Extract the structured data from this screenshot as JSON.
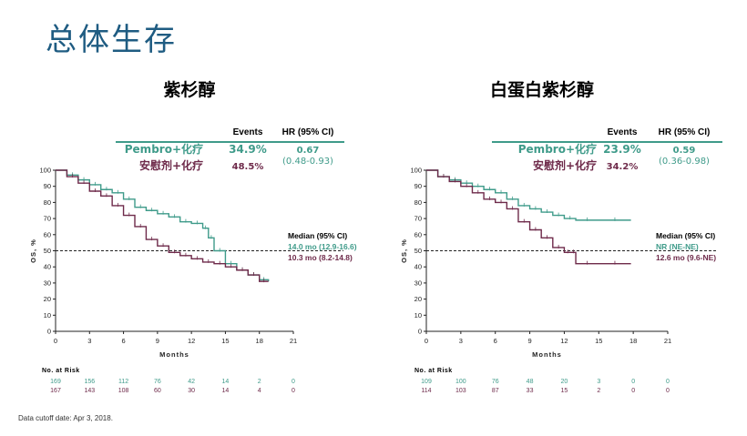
{
  "slide_title": "总体生存",
  "footnote": "Data cutoff date: Apr 3, 2018.",
  "colors": {
    "pembro": "#3f9b8a",
    "placebo": "#6e2a4a",
    "title": "#1f5c82"
  },
  "chart_data": [
    {
      "type": "line",
      "title": "紫杉醇",
      "xlabel": "Months",
      "ylabel": "OS, %",
      "xlim": [
        0,
        21
      ],
      "ylim": [
        0,
        100
      ],
      "xticks": [
        "0",
        "3",
        "6",
        "9",
        "12",
        "15",
        "18",
        "21"
      ],
      "yticks": [
        "0",
        "10",
        "20",
        "30",
        "40",
        "50",
        "60",
        "70",
        "80",
        "90",
        "100"
      ],
      "median_line": 50,
      "table_headers": {
        "events": "Events",
        "hr": "HR (95% CI)",
        "median": "Median (95% CI)"
      },
      "series": [
        {
          "name": "Pembro+化疗",
          "events": "34.9%",
          "hr": "0.67",
          "hr_ci": "(0.48-0.93)",
          "median": "14.0 mo (12.9-16.6)",
          "x": [
            0,
            1,
            2,
            3,
            4,
            5,
            6,
            7,
            8,
            9,
            10,
            11,
            12,
            13,
            13.5,
            14,
            15,
            16,
            17,
            18,
            18.8
          ],
          "y": [
            100,
            97,
            94,
            91,
            88,
            86,
            82,
            77,
            75,
            73,
            71,
            68,
            67,
            64,
            58,
            50,
            42,
            38,
            35,
            32,
            31
          ]
        },
        {
          "name": "安慰剂+化疗",
          "events": "48.5%",
          "hr": "",
          "hr_ci": "",
          "median": "10.3 mo (8.2-14.8)",
          "x": [
            0,
            1,
            2,
            3,
            4,
            5,
            6,
            7,
            8,
            9,
            10,
            11,
            12,
            13,
            14,
            15,
            16,
            17,
            18,
            18.8
          ],
          "y": [
            100,
            96,
            92,
            87,
            84,
            78,
            72,
            65,
            57,
            53,
            49,
            47,
            45,
            43,
            42,
            40,
            38,
            35,
            31,
            31
          ]
        }
      ],
      "risk_label": "No. at Risk",
      "risk": [
        [
          "169",
          "156",
          "112",
          "76",
          "42",
          "14",
          "2",
          "0"
        ],
        [
          "167",
          "143",
          "108",
          "60",
          "30",
          "14",
          "4",
          "0"
        ]
      ]
    },
    {
      "type": "line",
      "title": "白蛋白紫杉醇",
      "xlabel": "Months",
      "ylabel": "OS, %",
      "xlim": [
        0,
        21
      ],
      "ylim": [
        0,
        100
      ],
      "xticks": [
        "0",
        "3",
        "6",
        "9",
        "12",
        "15",
        "18",
        "21"
      ],
      "yticks": [
        "0",
        "10",
        "20",
        "30",
        "40",
        "50",
        "60",
        "70",
        "80",
        "90",
        "100"
      ],
      "median_line": 50,
      "table_headers": {
        "events": "Events",
        "hr": "HR (95% CI)",
        "median": "Median (95% CI)"
      },
      "series": [
        {
          "name": "Pembro+化疗",
          "events": "23.9%",
          "hr": "0.59",
          "hr_ci": "(0.36-0.98)",
          "median": "NR (NE-NE)",
          "x": [
            0,
            1,
            2,
            3,
            4,
            5,
            6,
            7,
            8,
            9,
            10,
            11,
            12,
            13,
            15,
            17.8
          ],
          "y": [
            100,
            96,
            94,
            92,
            90,
            88,
            86,
            82,
            78,
            76,
            74,
            72,
            70,
            69,
            69,
            69
          ]
        },
        {
          "name": "安慰剂+化疗",
          "events": "34.2%",
          "hr": "",
          "hr_ci": "",
          "median": "12.6 mo (9.6-NE)",
          "x": [
            0,
            1,
            2,
            3,
            4,
            5,
            6,
            7,
            8,
            9,
            10,
            11,
            12,
            12.6,
            13,
            15,
            17.8
          ],
          "y": [
            100,
            96,
            93,
            90,
            86,
            82,
            80,
            76,
            68,
            63,
            58,
            52,
            49,
            49,
            42,
            42,
            42
          ]
        }
      ],
      "risk_label": "No. at Risk",
      "risk": [
        [
          "109",
          "100",
          "76",
          "48",
          "20",
          "3",
          "0",
          "0"
        ],
        [
          "114",
          "103",
          "87",
          "33",
          "15",
          "2",
          "0",
          "0"
        ]
      ]
    }
  ]
}
